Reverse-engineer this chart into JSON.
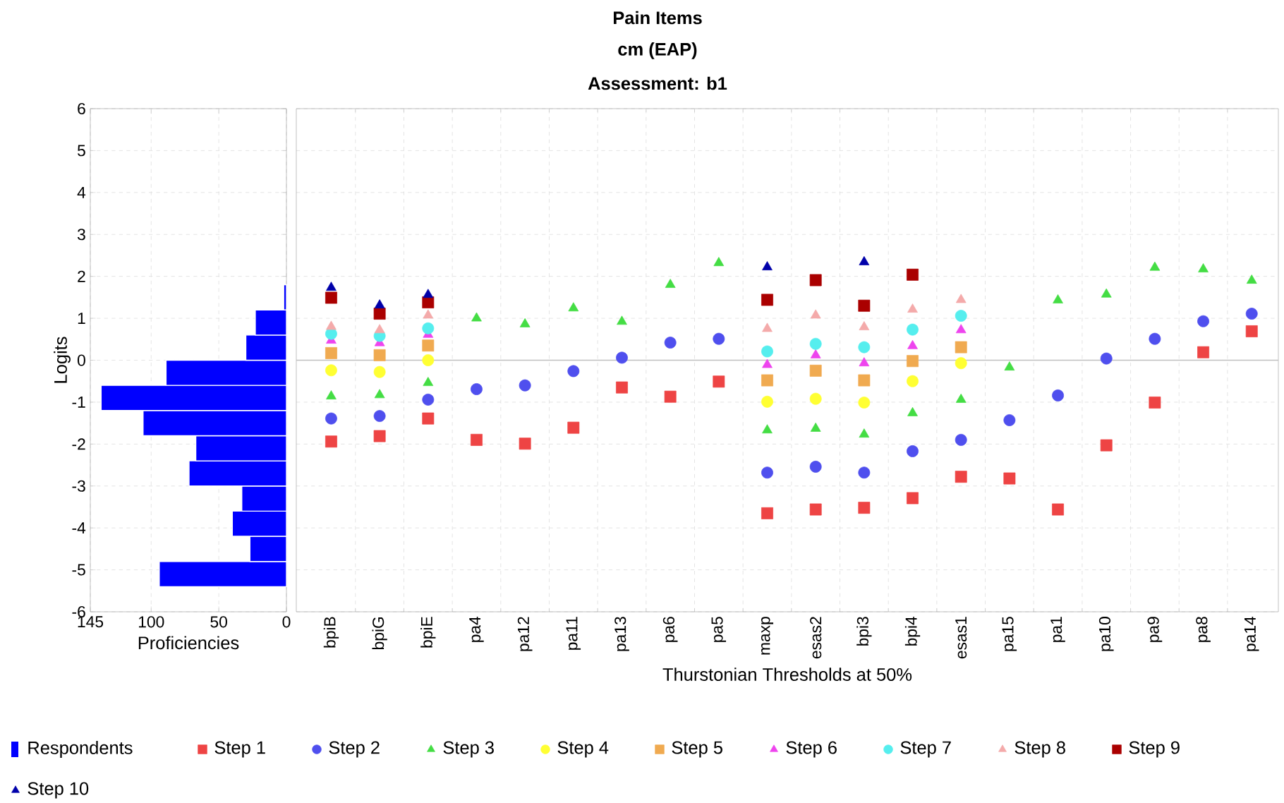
{
  "chart_data": [
    {
      "type": "histogram",
      "orientation": "horizontal",
      "xlabel": "Proficiencies",
      "ylabel": "Logits",
      "xlim": [
        145,
        0
      ],
      "xticks": [
        145,
        100,
        50,
        0
      ],
      "ylim": [
        -6,
        6
      ],
      "yticks": [
        -6,
        -5,
        -4,
        -3,
        -2,
        -1,
        0,
        1,
        2,
        3,
        4,
        5,
        6
      ],
      "grid": true,
      "legend": "bottom",
      "bins": [
        -5.4,
        -4.8,
        -4.2,
        -3.6,
        -3.0,
        -2.4,
        -1.8,
        -1.2,
        -0.6,
        0,
        0.6,
        1.2,
        1.8
      ],
      "series": [
        {
          "name": "Respondents",
          "color": "#0000ff",
          "values": [
            94,
            27,
            40,
            33,
            72,
            67,
            106,
            137,
            89,
            30,
            23,
            2
          ]
        }
      ]
    },
    {
      "type": "scatter",
      "title": "Pain Items",
      "subtitle": "cm (EAP)",
      "annotations": [
        "Assessment: b1"
      ],
      "xlabel": "Thurstonian Thresholds at 50%",
      "categories": [
        "bpiB",
        "bpiG",
        "bpiE",
        "pa4",
        "pa12",
        "pa11",
        "pa13",
        "pa6",
        "pa5",
        "maxp",
        "esas2",
        "bpi3",
        "bpi4",
        "esas1",
        "pa15",
        "pa1",
        "pa10",
        "pa9",
        "pa8",
        "pa14"
      ],
      "ylim": [
        -6,
        6
      ],
      "yticks": [
        -6,
        -5,
        -4,
        -3,
        -2,
        -1,
        0,
        1,
        2,
        3,
        4,
        5,
        6
      ],
      "tick_labels": "x",
      "grid": true,
      "legend": "bottom",
      "ref_lines": [
        {
          "axis": "y",
          "value": 0,
          "color": "#c0c0c0"
        }
      ],
      "series": [
        {
          "name": "Step 1",
          "color": "#ee4444",
          "marker": "square",
          "values": [
            -1.94,
            -1.81,
            -1.39,
            -1.9,
            -1.99,
            -1.61,
            -0.65,
            -0.87,
            -0.51,
            -3.65,
            -3.56,
            -3.52,
            -3.29,
            -2.78,
            -2.82,
            -3.56,
            -2.03,
            -1.01,
            0.19,
            0.69
          ]
        },
        {
          "name": "Step 2",
          "color": "#4f4fee",
          "marker": "circle",
          "values": [
            -1.39,
            -1.33,
            -0.94,
            -0.69,
            -0.6,
            -0.26,
            0.06,
            0.42,
            0.51,
            -2.68,
            -2.54,
            -2.68,
            -2.17,
            -1.9,
            -1.43,
            -0.84,
            0.04,
            0.51,
            0.93,
            1.11
          ]
        },
        {
          "name": "Step 3",
          "color": "#44dd44",
          "marker": "triangle",
          "values": [
            -0.86,
            -0.83,
            -0.54,
            1.0,
            0.86,
            1.24,
            0.92,
            1.8,
            2.32,
            -1.67,
            -1.63,
            -1.77,
            -1.26,
            -0.94,
            -0.17,
            1.43,
            1.57,
            2.21,
            2.17,
            1.9
          ]
        },
        {
          "name": "Step 4",
          "color": "#ffff33",
          "marker": "circle",
          "values": [
            -0.24,
            -0.28,
            0.0,
            null,
            null,
            null,
            null,
            null,
            null,
            -0.99,
            -0.92,
            -1.01,
            -0.5,
            -0.07,
            null,
            null,
            null,
            null,
            null,
            null
          ]
        },
        {
          "name": "Step 5",
          "color": "#f0aa50",
          "marker": "square",
          "values": [
            0.17,
            0.12,
            0.35,
            null,
            null,
            null,
            null,
            null,
            null,
            -0.48,
            -0.25,
            -0.48,
            -0.02,
            0.31,
            null,
            null,
            null,
            null,
            null,
            null
          ]
        },
        {
          "name": "Step 6",
          "color": "#ee44ee",
          "marker": "triangle",
          "values": [
            0.47,
            0.41,
            0.61,
            null,
            null,
            null,
            null,
            null,
            null,
            -0.11,
            0.12,
            -0.07,
            0.34,
            0.72,
            null,
            null,
            null,
            null,
            null,
            null
          ]
        },
        {
          "name": "Step 7",
          "color": "#55eeee",
          "marker": "circle",
          "values": [
            0.63,
            0.58,
            0.76,
            null,
            null,
            null,
            null,
            null,
            null,
            0.21,
            0.39,
            0.31,
            0.73,
            1.06,
            null,
            null,
            null,
            null,
            null,
            null
          ]
        },
        {
          "name": "Step 8",
          "color": "#f4aaaa",
          "marker": "triangle",
          "values": [
            0.8,
            0.72,
            1.07,
            null,
            null,
            null,
            null,
            null,
            null,
            0.75,
            1.07,
            0.79,
            1.21,
            1.44,
            null,
            null,
            null,
            null,
            null,
            null
          ]
        },
        {
          "name": "Step 9",
          "color": "#aa0000",
          "marker": "square",
          "values": [
            1.49,
            1.11,
            1.38,
            null,
            null,
            null,
            null,
            null,
            null,
            1.44,
            1.91,
            1.3,
            2.04,
            null,
            null,
            null,
            null,
            null,
            null,
            null
          ]
        },
        {
          "name": "Step 10",
          "color": "#0000aa",
          "marker": "triangle",
          "values": [
            1.73,
            1.31,
            1.56,
            null,
            null,
            null,
            null,
            null,
            null,
            2.22,
            null,
            2.34,
            null,
            null,
            null,
            null,
            null,
            null,
            null,
            null
          ]
        }
      ]
    }
  ]
}
